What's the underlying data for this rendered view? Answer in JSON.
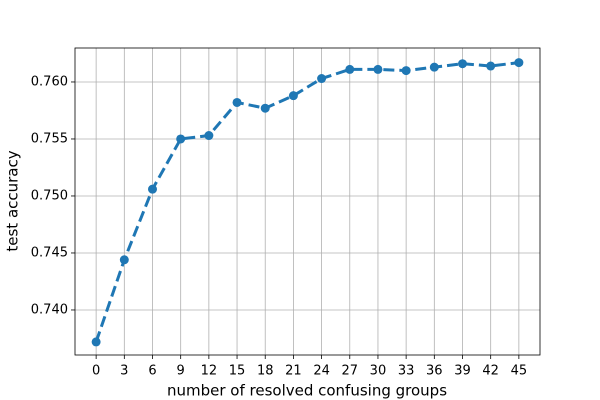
{
  "chart_data": {
    "type": "line",
    "xlabel": "number of resolved confusing groups",
    "ylabel": "test accuracy",
    "x": [
      0,
      3,
      6,
      9,
      12,
      15,
      18,
      21,
      24,
      27,
      30,
      33,
      36,
      39,
      42,
      45
    ],
    "series": [
      {
        "color": "#1f77b4",
        "values": [
          0.7372,
          0.7444,
          0.7506,
          0.755,
          0.7553,
          0.7582,
          0.7577,
          0.7588,
          0.7603,
          0.7611,
          0.7611,
          0.761,
          0.7613,
          0.7616,
          0.7614,
          0.7617
        ]
      }
    ],
    "xlim": [
      -2.25,
      47.25
    ],
    "xticks": [
      0,
      3,
      6,
      9,
      12,
      15,
      18,
      21,
      24,
      27,
      30,
      33,
      36,
      39,
      42,
      45
    ],
    "ylim": [
      0.73605,
      0.76298
    ],
    "yticks": [
      {
        "value": 0.74,
        "label": "0.740"
      },
      {
        "value": 0.745,
        "label": "0.745"
      },
      {
        "value": 0.75,
        "label": "0.750"
      },
      {
        "value": 0.755,
        "label": "0.755"
      },
      {
        "value": 0.76,
        "label": "0.760"
      }
    ],
    "grid": true,
    "line_style": "dashed",
    "marker": "circle"
  }
}
